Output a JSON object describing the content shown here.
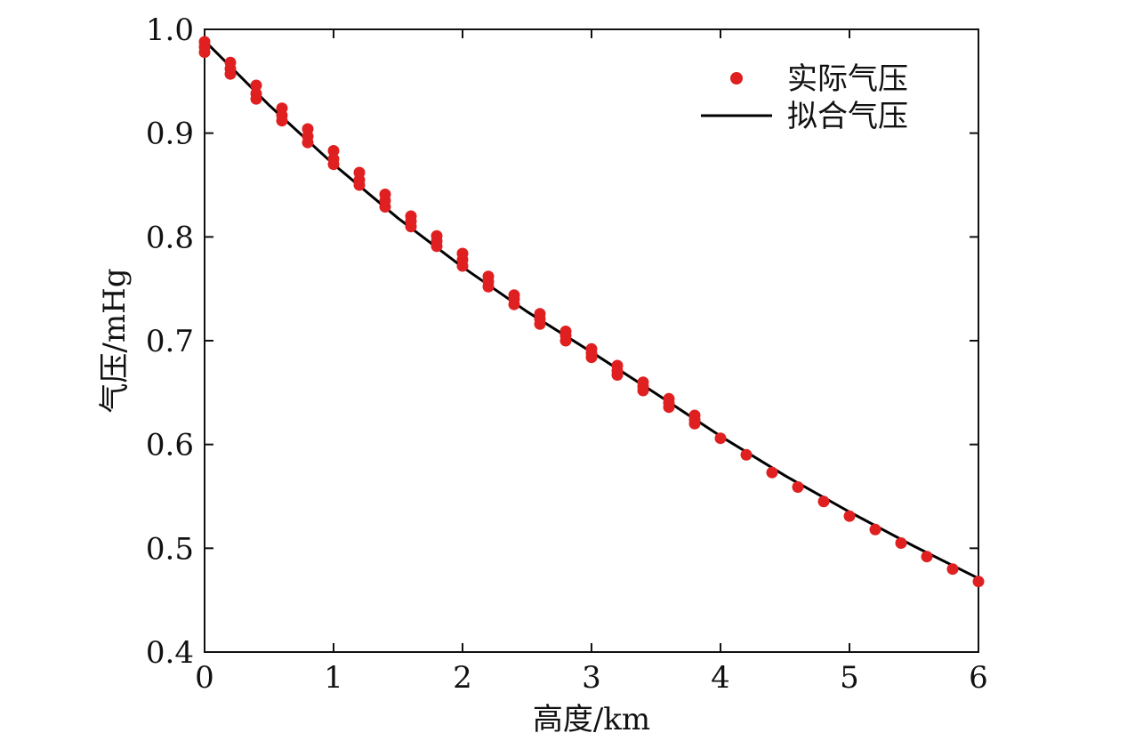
{
  "chart_data": {
    "type": "scatter",
    "xlabel": "高度/km",
    "ylabel": "气压/mHg",
    "xlim": [
      0,
      6
    ],
    "ylim": [
      0.4,
      1.0
    ],
    "xticks": [
      0,
      1,
      2,
      3,
      4,
      5,
      6
    ],
    "yticks": [
      0.4,
      0.5,
      0.6,
      0.7,
      0.8,
      0.9,
      1.0
    ],
    "xtick_labels": [
      "0",
      "1",
      "2",
      "3",
      "4",
      "5",
      "6"
    ],
    "ytick_labels": [
      "0.4",
      "0.5",
      "0.6",
      "0.7",
      "0.8",
      "0.9",
      "1.0"
    ],
    "grid": false,
    "legend_position": "top-right",
    "series": [
      {
        "name": "实际气压",
        "kind": "scatter",
        "color": "#e02020",
        "points": [
          [
            0.0,
            0.988
          ],
          [
            0.0,
            0.983
          ],
          [
            0.0,
            0.978
          ],
          [
            0.2,
            0.968
          ],
          [
            0.2,
            0.962
          ],
          [
            0.2,
            0.957
          ],
          [
            0.4,
            0.946
          ],
          [
            0.4,
            0.938
          ],
          [
            0.4,
            0.933
          ],
          [
            0.6,
            0.924
          ],
          [
            0.6,
            0.917
          ],
          [
            0.6,
            0.912
          ],
          [
            0.8,
            0.904
          ],
          [
            0.8,
            0.897
          ],
          [
            0.8,
            0.891
          ],
          [
            1.0,
            0.883
          ],
          [
            1.0,
            0.875
          ],
          [
            1.0,
            0.87
          ],
          [
            1.2,
            0.862
          ],
          [
            1.2,
            0.855
          ],
          [
            1.2,
            0.85
          ],
          [
            1.4,
            0.841
          ],
          [
            1.4,
            0.835
          ],
          [
            1.4,
            0.829
          ],
          [
            1.6,
            0.82
          ],
          [
            1.6,
            0.815
          ],
          [
            1.6,
            0.81
          ],
          [
            1.8,
            0.801
          ],
          [
            1.8,
            0.796
          ],
          [
            1.8,
            0.791
          ],
          [
            2.0,
            0.784
          ],
          [
            2.0,
            0.778
          ],
          [
            2.0,
            0.772
          ],
          [
            2.2,
            0.762
          ],
          [
            2.2,
            0.757
          ],
          [
            2.2,
            0.752
          ],
          [
            2.4,
            0.744
          ],
          [
            2.4,
            0.74
          ],
          [
            2.4,
            0.735
          ],
          [
            2.6,
            0.726
          ],
          [
            2.6,
            0.721
          ],
          [
            2.6,
            0.716
          ],
          [
            2.8,
            0.709
          ],
          [
            2.8,
            0.705
          ],
          [
            2.8,
            0.7
          ],
          [
            3.0,
            0.692
          ],
          [
            3.0,
            0.688
          ],
          [
            3.0,
            0.684
          ],
          [
            3.2,
            0.676
          ],
          [
            3.2,
            0.671
          ],
          [
            3.2,
            0.667
          ],
          [
            3.4,
            0.66
          ],
          [
            3.4,
            0.656
          ],
          [
            3.4,
            0.652
          ],
          [
            3.6,
            0.644
          ],
          [
            3.6,
            0.64
          ],
          [
            3.6,
            0.636
          ],
          [
            3.8,
            0.628
          ],
          [
            3.8,
            0.624
          ],
          [
            3.8,
            0.62
          ],
          [
            4.0,
            0.606
          ],
          [
            4.2,
            0.59
          ],
          [
            4.4,
            0.573
          ],
          [
            4.6,
            0.559
          ],
          [
            4.8,
            0.545
          ],
          [
            5.0,
            0.531
          ],
          [
            5.2,
            0.518
          ],
          [
            5.4,
            0.505
          ],
          [
            5.6,
            0.492
          ],
          [
            5.8,
            0.48
          ],
          [
            6.0,
            0.468
          ]
        ]
      },
      {
        "name": "拟合气压",
        "kind": "line",
        "color": "#000000",
        "x": [
          0,
          0.5,
          1,
          1.5,
          2,
          2.5,
          3,
          3.5,
          4,
          4.5,
          5,
          5.5,
          6
        ],
        "y": [
          0.989,
          0.927,
          0.87,
          0.818,
          0.771,
          0.728,
          0.689,
          0.649,
          0.608,
          0.57,
          0.535,
          0.502,
          0.471
        ]
      }
    ]
  }
}
